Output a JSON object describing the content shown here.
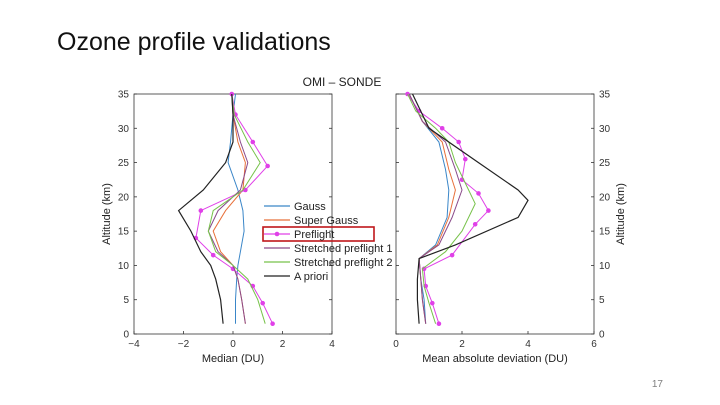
{
  "slide": {
    "title": "Ozone profile validations",
    "page_number": "17"
  },
  "chart_data": {
    "type": "line",
    "title": "OMI – SONDE",
    "colors": {
      "Gauss": "#3a86c8",
      "Super Gauss": "#e8703a",
      "Preflight": "#e040e8",
      "Stretched preflight 1": "#8a4a8a",
      "Stretched preflight 2": "#77c24a",
      "A priori": "#222222"
    },
    "legend": {
      "placement": "center-between-panels",
      "entries": [
        "Gauss",
        "Super Gauss",
        "Preflight",
        "Stretched preflight 1",
        "Stretched preflight 2",
        "A priori"
      ],
      "highlighted": "Preflight"
    },
    "panels": [
      {
        "xlabel": "Median (DU)",
        "ylabel": "Altitude (km)",
        "xlim": [
          -4,
          4
        ],
        "ylim": [
          0,
          35
        ],
        "xticks": [
          "−4",
          "−2",
          "0",
          "2",
          "4"
        ],
        "yticks": [
          "0",
          "5",
          "10",
          "15",
          "20",
          "25",
          "30",
          "35"
        ],
        "y_axis_side": "left",
        "series": [
          {
            "name": "Gauss",
            "x": [
              0.1,
              0.1,
              0.15,
              0.2,
              0.3,
              0.45,
              0.4,
              0.2,
              -0.2,
              -0.1,
              0.0,
              0.1
            ],
            "y": [
              1.5,
              5,
              8,
              10,
              12,
              15,
              18,
              21,
              25,
              28,
              32,
              35
            ]
          },
          {
            "name": "Super Gauss",
            "x": [
              0.5,
              0.35,
              0.2,
              0.0,
              -0.5,
              -0.8,
              -0.3,
              0.4,
              0.5,
              0.2,
              0.0,
              -0.05
            ],
            "y": [
              1.5,
              5,
              8,
              10,
              12,
              15,
              18,
              21,
              25,
              28,
              32,
              35
            ]
          },
          {
            "name": "Preflight",
            "x": [
              1.6,
              1.2,
              0.8,
              0.0,
              -0.8,
              -1.5,
              -1.3,
              0.5,
              1.4,
              0.8,
              0.1,
              -0.05
            ],
            "y": [
              1.5,
              4.5,
              7,
              9.5,
              11.5,
              14,
              18,
              21,
              24.5,
              28,
              32,
              35
            ]
          },
          {
            "name": "Stretched preflight 1",
            "x": [
              0.5,
              0.35,
              0.2,
              0.0,
              -0.6,
              -1.0,
              -0.6,
              0.3,
              0.6,
              0.3,
              0.0,
              -0.05
            ],
            "y": [
              1.5,
              5,
              8,
              10,
              12,
              15,
              18,
              21,
              25,
              28,
              32,
              35
            ]
          },
          {
            "name": "Stretched preflight 2",
            "x": [
              1.3,
              1.0,
              0.6,
              0.0,
              -0.7,
              -1.0,
              -0.8,
              0.4,
              1.1,
              0.6,
              0.05,
              -0.05
            ],
            "y": [
              1.5,
              5,
              8,
              10,
              12,
              15,
              18,
              21,
              25,
              28,
              32,
              35
            ]
          },
          {
            "name": "A priori",
            "x": [
              -0.4,
              -0.5,
              -0.7,
              -0.9,
              -1.3,
              -1.7,
              -2.2,
              -1.2,
              -0.3,
              0.0,
              0.0,
              -0.05
            ],
            "y": [
              1.5,
              5,
              8,
              10,
              12,
              15,
              18,
              21,
              25,
              28,
              32,
              35
            ]
          }
        ],
        "marker_series": "Preflight"
      },
      {
        "xlabel": "Mean absolute deviation (DU)",
        "ylabel": "Altitude (km)",
        "xlim": [
          0,
          6
        ],
        "ylim": [
          0,
          35
        ],
        "xticks": [
          "0",
          "2",
          "4",
          "6"
        ],
        "yticks": [
          "0",
          "5",
          "10",
          "15",
          "20",
          "25",
          "30",
          "35"
        ],
        "y_axis_side": "right",
        "series": [
          {
            "name": "Gauss",
            "x": [
              0.9,
              0.85,
              0.75,
              0.7,
              1.2,
              1.55,
              1.6,
              1.5,
              1.3,
              0.8,
              0.4
            ],
            "y": [
              1.5,
              5,
              8,
              11,
              13,
              17,
              21,
              24,
              28,
              31,
              35
            ]
          },
          {
            "name": "Super Gauss",
            "x": [
              0.9,
              0.8,
              0.75,
              0.7,
              1.25,
              1.6,
              1.8,
              1.6,
              1.4,
              0.8,
              0.4
            ],
            "y": [
              1.5,
              5,
              8,
              11,
              13,
              17,
              21,
              24,
              28,
              31,
              35
            ]
          },
          {
            "name": "Preflight",
            "x": [
              1.3,
              1.1,
              0.9,
              0.85,
              1.7,
              2.4,
              2.8,
              2.5,
              2.0,
              2.1,
              1.9,
              1.4,
              0.7,
              0.35
            ],
            "y": [
              1.5,
              4.5,
              7,
              9.5,
              11.5,
              16,
              18,
              20.5,
              22.5,
              25.5,
              28,
              30,
              32.5,
              35
            ]
          },
          {
            "name": "Stretched preflight 1",
            "x": [
              0.9,
              0.8,
              0.75,
              0.7,
              1.3,
              1.7,
              2.0,
              1.8,
              1.5,
              0.8,
              0.4
            ],
            "y": [
              1.5,
              5,
              8,
              11,
              13,
              17,
              21,
              24,
              28,
              31,
              35
            ]
          },
          {
            "name": "Stretched preflight 2",
            "x": [
              1.2,
              1.0,
              0.85,
              0.8,
              1.5,
              2.0,
              2.4,
              2.1,
              1.8,
              1.6,
              1.2,
              0.6,
              0.35
            ],
            "y": [
              1.5,
              4.5,
              7,
              9.5,
              12,
              15,
              19,
              22,
              25,
              28,
              30,
              32.5,
              35
            ]
          },
          {
            "name": "A priori",
            "x": [
              0.7,
              0.65,
              0.65,
              0.7,
              1.8,
              3.7,
              4.0,
              3.7,
              2.5,
              1.0,
              0.5
            ],
            "y": [
              1.5,
              5,
              8,
              11,
              13,
              17,
              19.5,
              21,
              25,
              30,
              35
            ]
          }
        ],
        "marker_series": "Preflight"
      }
    ]
  }
}
